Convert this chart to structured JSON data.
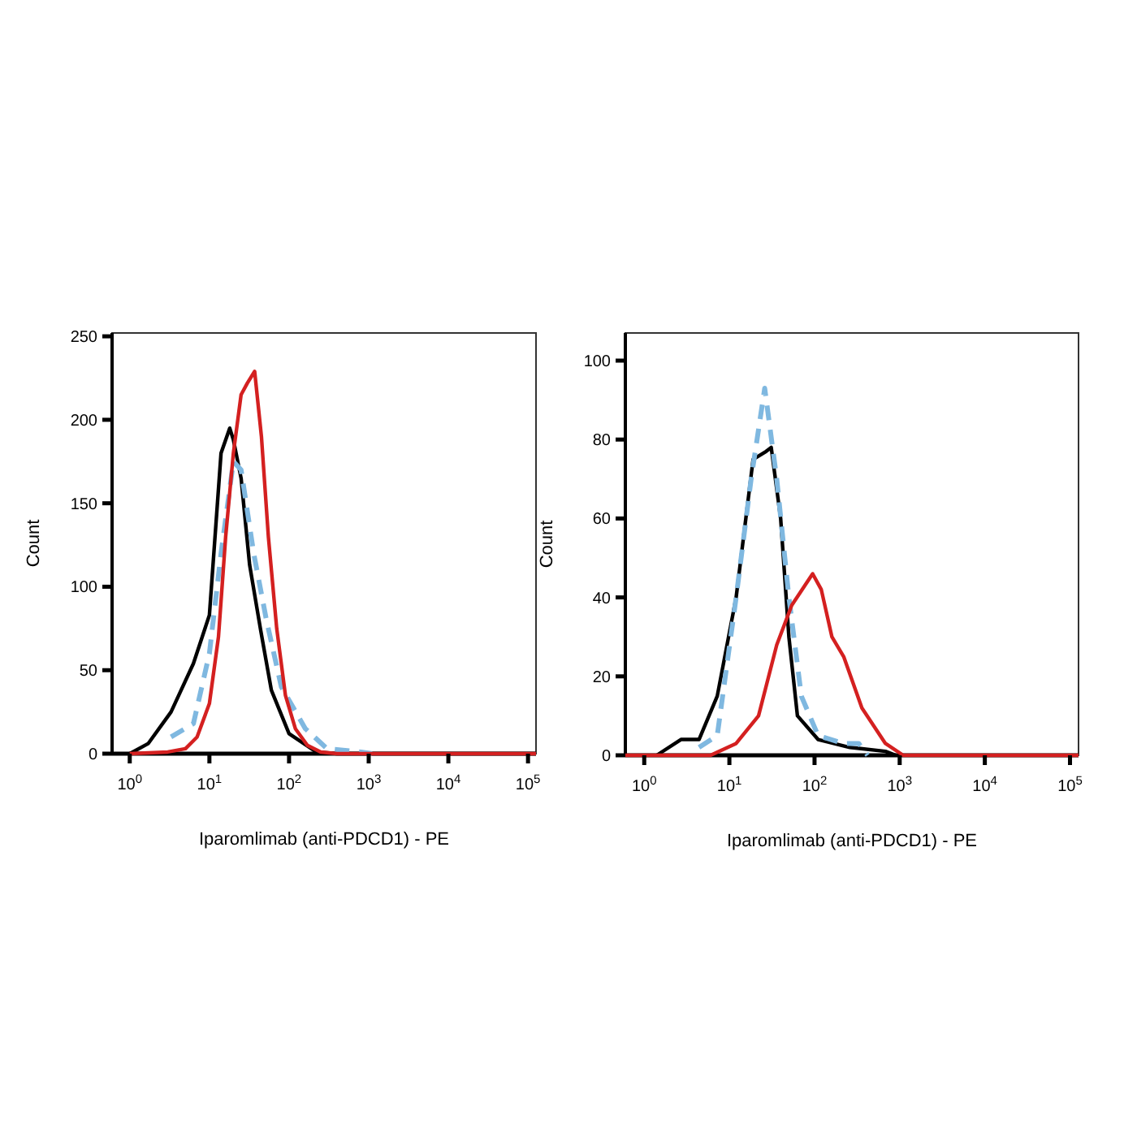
{
  "chart_data": [
    {
      "type": "line",
      "xlabel": "Iparomlimab (anti-PDCD1) - PE",
      "ylabel": "Count",
      "log": "x",
      "xlim": [
        0.6,
        126000
      ],
      "ylim": [
        0,
        252
      ],
      "xticks": [
        {
          "value": 1,
          "label": "10$^{0}$"
        },
        {
          "value": 10,
          "label": "10$^{1}$"
        },
        {
          "value": 100,
          "label": "10$^{2}$"
        },
        {
          "value": 1000,
          "label": "10$^{3}$"
        },
        {
          "value": 10000,
          "label": "10$^{4}$"
        },
        {
          "value": 100000,
          "label": "10$^{5}$"
        }
      ],
      "yticks": [
        0,
        50,
        100,
        150,
        200,
        250
      ],
      "grid": false,
      "marker": "none",
      "series": [
        {
          "color": "#000000",
          "line_style": "solid",
          "x": [
            1,
            1.7,
            3.3,
            6.3,
            10,
            14,
            18,
            20,
            25,
            32,
            44,
            60,
            100,
            220,
            400,
            126000
          ],
          "values": [
            0,
            6,
            25,
            54,
            83,
            180,
            195,
            188,
            165,
            113,
            74,
            38,
            12,
            1,
            0,
            0
          ]
        },
        {
          "color": "#7fb8e0",
          "line_style": "dashed",
          "x": [
            3.3,
            6.3,
            10,
            14,
            20,
            25,
            36,
            52,
            80,
            160,
            300,
            800,
            1100
          ],
          "values": [
            10,
            18,
            60,
            120,
            175,
            170,
            120,
            80,
            40,
            15,
            3,
            1,
            0
          ]
        },
        {
          "color": "#d42020",
          "line_style": "solid",
          "x": [
            1,
            3,
            5,
            7,
            10,
            13,
            16,
            20,
            25,
            30,
            37,
            45,
            55,
            70,
            90,
            120,
            170,
            250,
            400,
            126000
          ],
          "values": [
            0,
            1,
            3,
            10,
            30,
            70,
            130,
            180,
            215,
            222,
            229,
            190,
            130,
            75,
            35,
            15,
            5,
            1,
            0,
            0
          ]
        }
      ]
    },
    {
      "type": "line",
      "xlabel": "Iparomlimab (anti-PDCD1) - PE",
      "ylabel": "Count",
      "log": "x",
      "xlim": [
        0.6,
        126000
      ],
      "ylim": [
        0,
        107
      ],
      "xticks": [
        {
          "value": 1,
          "label": "10$^{0}$"
        },
        {
          "value": 10,
          "label": "10$^{1}$"
        },
        {
          "value": 100,
          "label": "10$^{2}$"
        },
        {
          "value": 1000,
          "label": "10$^{3}$"
        },
        {
          "value": 10000,
          "label": "10$^{4}$"
        },
        {
          "value": 100000,
          "label": "10$^{5}$"
        }
      ],
      "yticks": [
        0,
        20,
        40,
        60,
        80,
        100
      ],
      "grid": false,
      "marker": "none",
      "series": [
        {
          "color": "#000000",
          "line_style": "solid",
          "x": [
            1.4,
            2.7,
            4.4,
            7.2,
            12,
            19,
            27,
            31,
            40,
            50,
            63,
            110,
            260,
            680,
            900
          ],
          "values": [
            0,
            4,
            4,
            15,
            40,
            75,
            77,
            78,
            60,
            30,
            10,
            4,
            2,
            1,
            0
          ]
        },
        {
          "color": "#7fb8e0",
          "line_style": "dashed",
          "x": [
            4.4,
            7.2,
            12,
            18,
            26,
            36,
            50,
            70,
            110,
            220,
            330,
            420
          ],
          "values": [
            2,
            5,
            40,
            70,
            93,
            70,
            40,
            15,
            5,
            3,
            3,
            0
          ]
        },
        {
          "color": "#d42020",
          "line_style": "solid",
          "x": [
            0.6,
            6,
            12,
            22,
            36,
            54,
            95,
            120,
            160,
            220,
            360,
            680,
            1100,
            126000
          ],
          "values": [
            0,
            0,
            3,
            10,
            28,
            38,
            46,
            42,
            30,
            25,
            12,
            3,
            0,
            0
          ]
        }
      ]
    }
  ]
}
